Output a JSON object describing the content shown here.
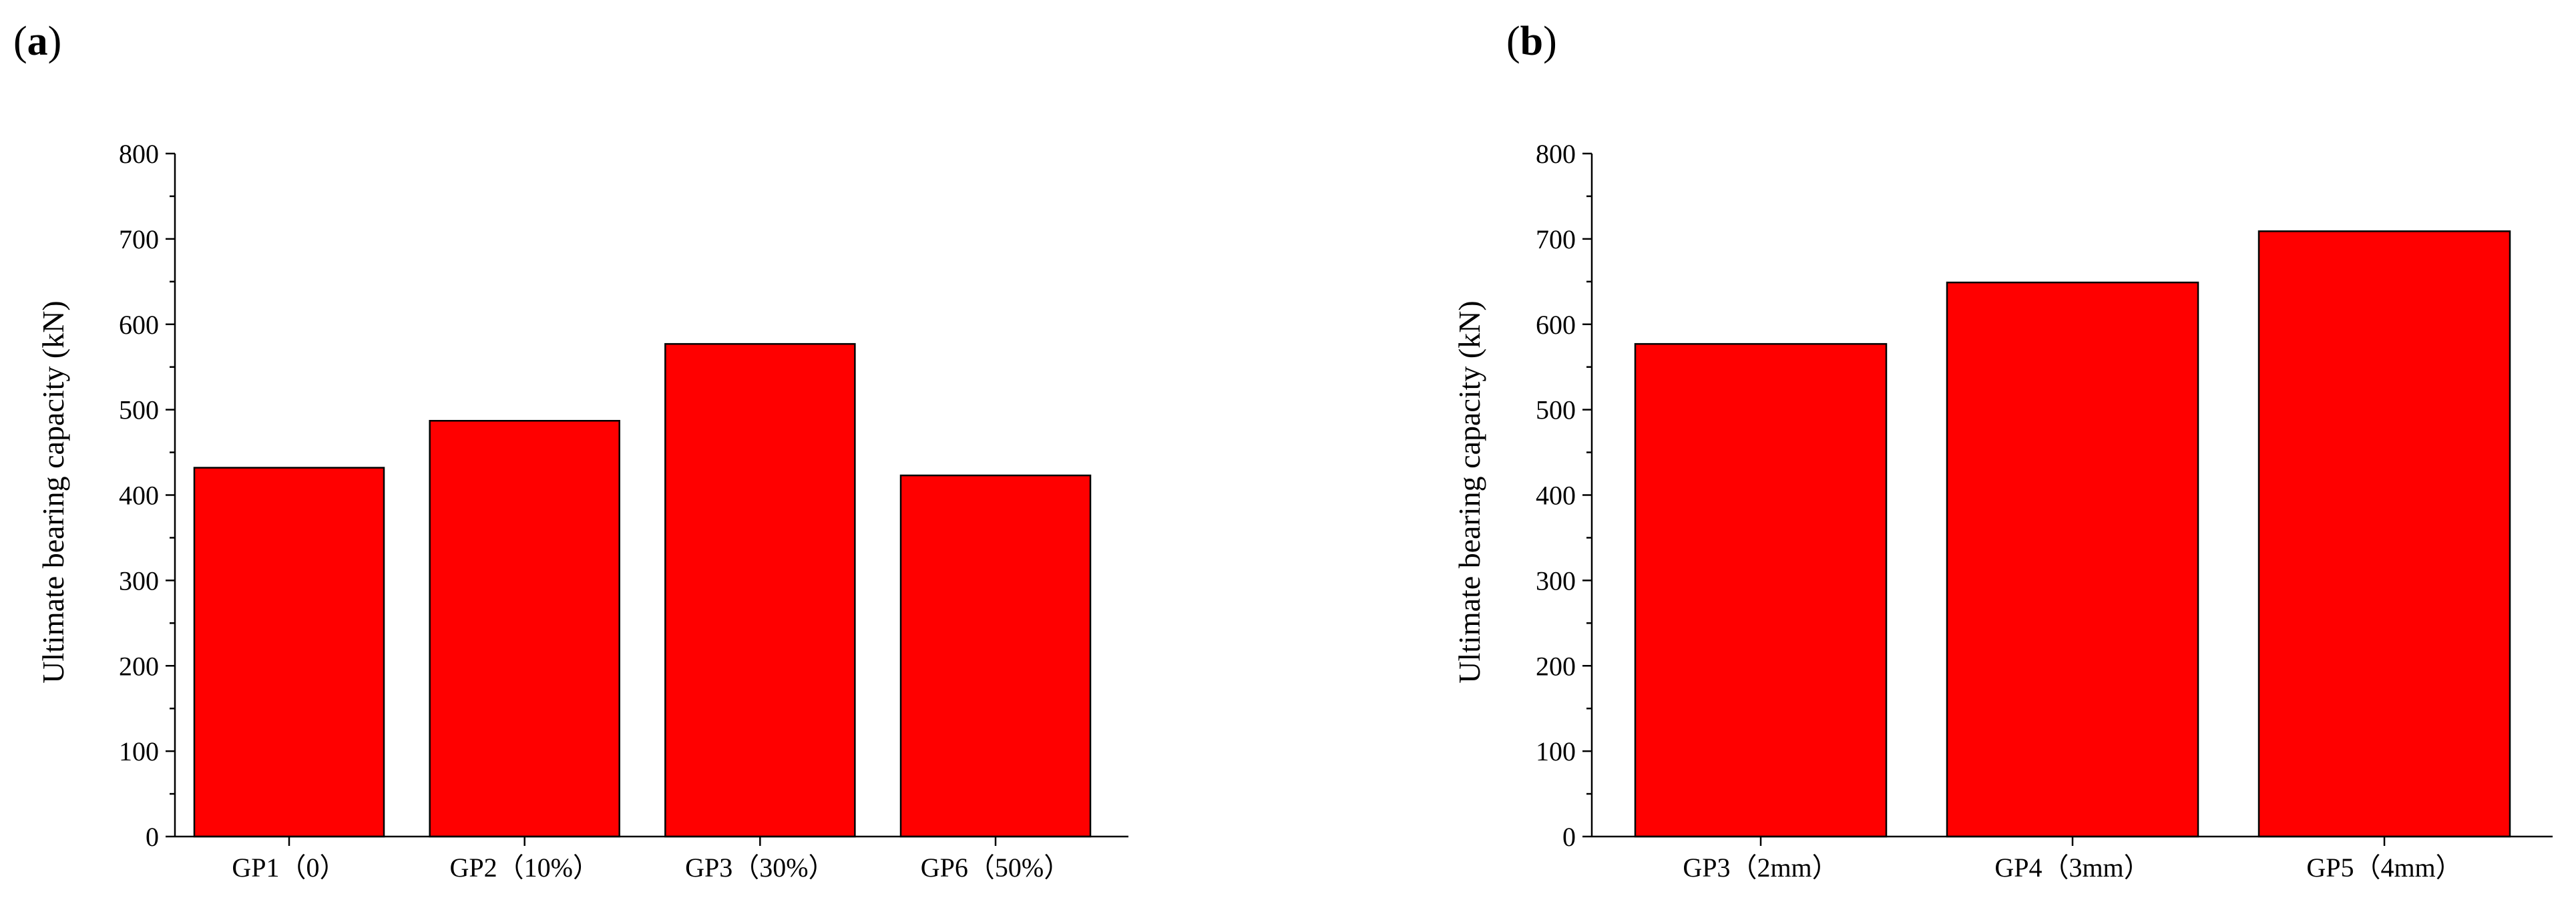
{
  "chart_data": [
    {
      "type": "bar",
      "panel_label": "a",
      "title": "",
      "xlabel": "",
      "ylabel": "Ultimate bearing capacity (kN)",
      "ylim": [
        0,
        800
      ],
      "yticks": [
        0,
        100,
        200,
        300,
        400,
        500,
        600,
        700,
        800
      ],
      "categories": [
        "GP1（0）",
        "GP2（10%）",
        "GP3（30%）",
        "GP6（50%）"
      ],
      "values": [
        432,
        487,
        577,
        423
      ],
      "bar_color": "#ff0000",
      "grid": false
    },
    {
      "type": "bar",
      "panel_label": "b",
      "title": "",
      "xlabel": "",
      "ylabel": "Ultimate bearing capacity (kN)",
      "ylim": [
        0,
        800
      ],
      "yticks": [
        0,
        100,
        200,
        300,
        400,
        500,
        600,
        700,
        800
      ],
      "categories": [
        "GP3（2mm）",
        "GP4（3mm）",
        "GP5（4mm）"
      ],
      "values": [
        577,
        649,
        709
      ],
      "bar_color": "#ff0000",
      "grid": false
    }
  ]
}
